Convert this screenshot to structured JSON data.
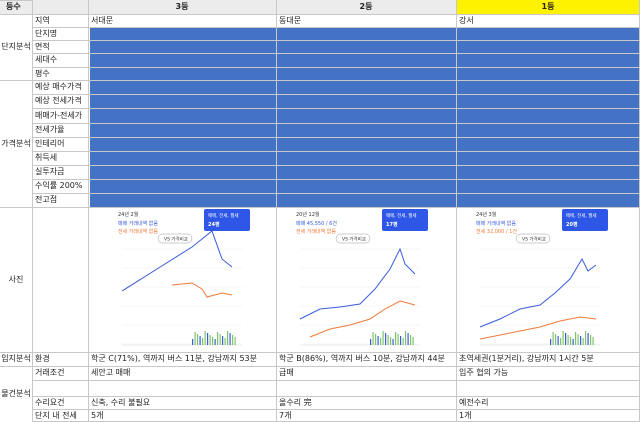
{
  "header": {
    "label": "등수",
    "ranks": [
      "3등",
      "2등",
      "1등"
    ]
  },
  "groups": [
    {
      "label": "단지분석"
    },
    {
      "label": "가격분석"
    },
    {
      "label": "사진"
    },
    {
      "label": "입지분석"
    },
    {
      "label": "물건분석"
    }
  ],
  "rows": [
    {
      "label": "지역",
      "cells": [
        "서대문",
        "동대문",
        "강서"
      ]
    },
    {
      "label": "단지명"
    },
    {
      "label": "면적"
    },
    {
      "label": "세대수"
    },
    {
      "label": "평수"
    },
    {
      "label": "예상 매수가격"
    },
    {
      "label": "예상 전세가격"
    },
    {
      "label": "매매가-전세가"
    },
    {
      "label": "전세가율"
    },
    {
      "label": "인테리어"
    },
    {
      "label": "취득세"
    },
    {
      "label": "실투자금"
    },
    {
      "label": "수익률 200%"
    },
    {
      "label": "전고점"
    },
    {
      "label": "환경",
      "cells": [
        "학군 C(71%), 역까지 버스 11분, 강남까지 53분",
        "학군 B(86%), 역까지 버스 10분, 강남까지 44분",
        "초역세권(1분거리), 강남까지 1시간 5분"
      ]
    },
    {
      "label": "거래조건",
      "cells": [
        "세안고 매매",
        "급매",
        "입주 협의 가능"
      ]
    },
    {
      "label": "수리요건",
      "cells": [
        "신축, 수리 불필요",
        "올수리 完",
        "예전수리"
      ]
    },
    {
      "label": "단지 내 전세",
      "cells": [
        "5개",
        "7개",
        "1개"
      ]
    }
  ],
  "photos": [
    {
      "date": "24년 2월",
      "sale": "매매 거래내역 없음",
      "rent": "전세 거래내역 없음",
      "filter": "매매, 전세, 월세",
      "size": "24평",
      "compare": "VS 가격비교"
    },
    {
      "date": "20년 12월",
      "sale": "매매 45,550 / 6건",
      "rent": "전세 거래내역 없음",
      "filter": "매매, 전세, 월세",
      "size": "17평",
      "compare": "VS 가격비교"
    },
    {
      "date": "24년 3월",
      "sale": "매매 거래내역 없음",
      "rent": "전세 32,000 / 1건",
      "filter": "매매, 전세, 월세",
      "size": "20평",
      "compare": "VS 가격비교"
    }
  ]
}
